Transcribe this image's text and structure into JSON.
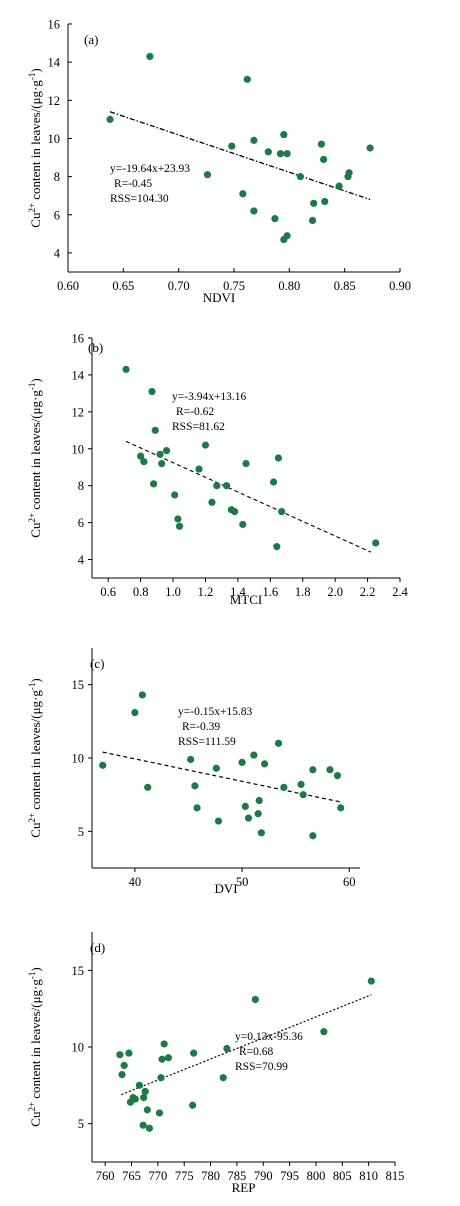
{
  "colors": {
    "point": "#1d7a46",
    "axis": "#000000",
    "fit": "#000000"
  },
  "chart_data": [
    {
      "type": "scatter",
      "panel_label": "(a)",
      "xlabel": "NDVI",
      "ylabel_prefix": "Cu",
      "ylabel_sup": "2+",
      "ylabel_mid": " content in leaves/(μg·g",
      "ylabel_sup2": "-1",
      "ylabel_end": ")",
      "xlim": [
        0.6,
        0.9
      ],
      "ylim": [
        3,
        16
      ],
      "xticks": [
        "0.60",
        "0.65",
        "0.70",
        "0.75",
        "0.80",
        "0.85",
        "0.90"
      ],
      "yticks": [
        "4",
        "6",
        "8",
        "10",
        "12",
        "14",
        "16"
      ],
      "eq_lines": [
        "y=-19.64x+23.93",
        "R=-0.45",
        "RSS=104.30"
      ],
      "fit": [
        [
          0.638,
          11.4
        ],
        [
          0.873,
          6.8
        ]
      ],
      "fit_style": "dashdot",
      "x": [
        0.638,
        0.674,
        0.726,
        0.748,
        0.758,
        0.762,
        0.768,
        0.768,
        0.781,
        0.787,
        0.792,
        0.795,
        0.795,
        0.798,
        0.798,
        0.81,
        0.821,
        0.822,
        0.829,
        0.831,
        0.832,
        0.845,
        0.853,
        0.854,
        0.873
      ],
      "y": [
        11.0,
        14.3,
        8.1,
        9.6,
        7.1,
        13.1,
        9.9,
        6.2,
        9.3,
        5.8,
        9.2,
        10.2,
        4.7,
        9.2,
        4.9,
        8.0,
        5.7,
        6.6,
        9.7,
        8.9,
        6.7,
        7.5,
        8.0,
        8.2,
        9.5
      ]
    },
    {
      "type": "scatter",
      "panel_label": "(b)",
      "xlabel": "MTCI",
      "ylabel_prefix": "Cu",
      "ylabel_sup": "2+",
      "ylabel_mid": " content in leaves/(μg·g",
      "ylabel_sup2": "-1",
      "ylabel_end": ")",
      "xlim": [
        0.5,
        2.4
      ],
      "ylim": [
        3,
        16
      ],
      "xticks": [
        "0.6",
        "0.8",
        "1.0",
        "1.2",
        "1.4",
        "1.6",
        "1.8",
        "2.0",
        "2.2",
        "2.4"
      ],
      "yticks": [
        "4",
        "6",
        "8",
        "10",
        "12",
        "14",
        "16"
      ],
      "eq_lines": [
        "y=-3.94x+13.16",
        "R=-0.62",
        "RSS=81.62"
      ],
      "fit": [
        [
          0.71,
          10.4
        ],
        [
          2.22,
          4.4
        ]
      ],
      "fit_style": "dashed",
      "x": [
        0.71,
        0.8,
        0.82,
        0.87,
        0.88,
        0.89,
        0.92,
        0.93,
        0.96,
        1.01,
        1.03,
        1.04,
        1.16,
        1.2,
        1.24,
        1.27,
        1.33,
        1.36,
        1.38,
        1.43,
        1.45,
        1.62,
        1.64,
        1.65,
        1.67,
        2.25
      ],
      "y": [
        14.3,
        9.6,
        9.3,
        13.1,
        8.1,
        11.0,
        9.7,
        9.2,
        9.9,
        7.5,
        6.2,
        5.8,
        8.9,
        10.2,
        7.1,
        8.0,
        8.0,
        6.7,
        6.6,
        5.9,
        9.2,
        8.2,
        4.7,
        9.5,
        6.6,
        4.9
      ]
    },
    {
      "type": "scatter",
      "panel_label": "(c)",
      "xlabel": "DVI",
      "ylabel_prefix": "Cu",
      "ylabel_sup": "2+",
      "ylabel_mid": " content in leaves/(μg·g",
      "ylabel_sup2": "-1",
      "ylabel_end": ")",
      "xlim": [
        36,
        61
      ],
      "ylim": [
        2.5,
        17.5
      ],
      "xticks": [
        "40",
        "50",
        "60"
      ],
      "yticks": [
        "5",
        "10",
        "15"
      ],
      "eq_lines": [
        "y=-0.15x+15.83",
        "R=-0.39",
        "RSS=111.59"
      ],
      "fit": [
        [
          37.0,
          10.4
        ],
        [
          59.2,
          7.0
        ]
      ],
      "fit_style": "dashed",
      "x": [
        37.0,
        40.0,
        40.7,
        41.2,
        45.2,
        45.6,
        45.8,
        47.6,
        47.8,
        50.0,
        50.3,
        50.6,
        51.1,
        51.5,
        51.6,
        51.8,
        52.1,
        53.4,
        53.9,
        55.5,
        55.7,
        56.6,
        56.6,
        58.2,
        58.9,
        59.2
      ],
      "y": [
        9.5,
        13.1,
        14.3,
        8.0,
        9.9,
        8.1,
        6.6,
        9.3,
        5.7,
        9.7,
        6.7,
        5.9,
        10.2,
        6.2,
        7.1,
        4.9,
        9.6,
        11.0,
        8.0,
        8.2,
        7.5,
        4.7,
        9.2,
        9.2,
        8.8,
        6.6
      ]
    },
    {
      "type": "scatter",
      "panel_label": "(d)",
      "xlabel": "REP",
      "ylabel_prefix": "Cu",
      "ylabel_sup": "2+",
      "ylabel_mid": " content in leaves/(μg·g",
      "ylabel_sup2": "-1",
      "ylabel_end": ")",
      "xlim": [
        757.5,
        815
      ],
      "ylim": [
        2.5,
        17.5
      ],
      "xticks": [
        "760",
        "765",
        "770",
        "775",
        "780",
        "785",
        "790",
        "795",
        "800",
        "805",
        "810",
        "815"
      ],
      "yticks": [
        "5",
        "10",
        "15"
      ],
      "eq_lines": [
        "y=0.13x-95.36",
        "R=0.68",
        "RSS=70.99"
      ],
      "fit": [
        [
          763.1,
          6.9
        ],
        [
          810.5,
          13.4
        ]
      ],
      "fit_style": "dotted",
      "x": [
        762.8,
        763.2,
        763.6,
        764.5,
        765.3,
        765.7,
        766.5,
        767.2,
        767.3,
        767.6,
        768.0,
        768.4,
        770.3,
        770.8,
        771.2,
        772.0,
        776.6,
        776.8,
        782.4,
        783.1,
        788.5,
        801.5,
        810.5,
        764.8,
        770.6
      ],
      "y": [
        9.5,
        8.2,
        8.8,
        9.6,
        6.7,
        6.6,
        7.5,
        4.9,
        6.7,
        7.1,
        5.9,
        4.7,
        5.7,
        9.2,
        10.2,
        9.3,
        6.2,
        9.6,
        8.0,
        9.9,
        13.1,
        11.0,
        14.3,
        6.4,
        8.0
      ]
    }
  ]
}
